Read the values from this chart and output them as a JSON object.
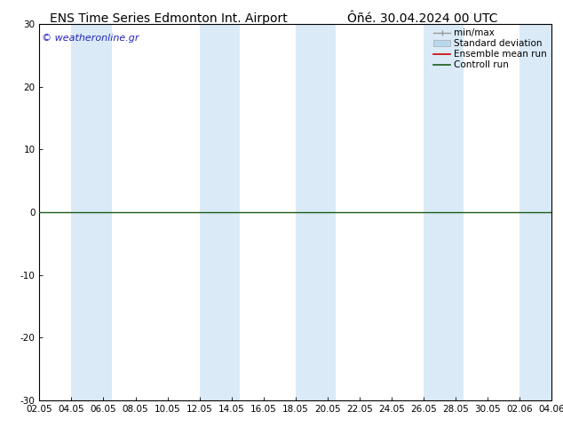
{
  "title_left": "ENS Time Series Edmonton Int. Airport",
  "title_right": "Ôñé. 30.04.2024 00 UTC",
  "watermark": "© weatheronline.gr",
  "ylim": [
    -30,
    30
  ],
  "yticks": [
    -30,
    -20,
    -10,
    0,
    10,
    20,
    30
  ],
  "x_tick_labels": [
    "02.05",
    "04.05",
    "06.05",
    "08.05",
    "10.05",
    "12.05",
    "14.05",
    "16.05",
    "18.05",
    "20.05",
    "22.05",
    "24.05",
    "26.05",
    "28.05",
    "30.05",
    "02.06",
    "04.06"
  ],
  "shade_color": "#daeaf7",
  "zero_line_color": "#1a5c1a",
  "ensemble_mean_color": "#cc0000",
  "control_run_color": "#1a5c1a",
  "minmax_color": "#999999",
  "std_dev_color": "#b8d8f0",
  "background_color": "#ffffff",
  "legend_labels": [
    "min/max",
    "Standard deviation",
    "Ensemble mean run",
    "Controll run"
  ],
  "title_fontsize": 10,
  "tick_fontsize": 7.5,
  "legend_fontsize": 7.5,
  "watermark_color": "#2222bb",
  "watermark_fontsize": 8
}
